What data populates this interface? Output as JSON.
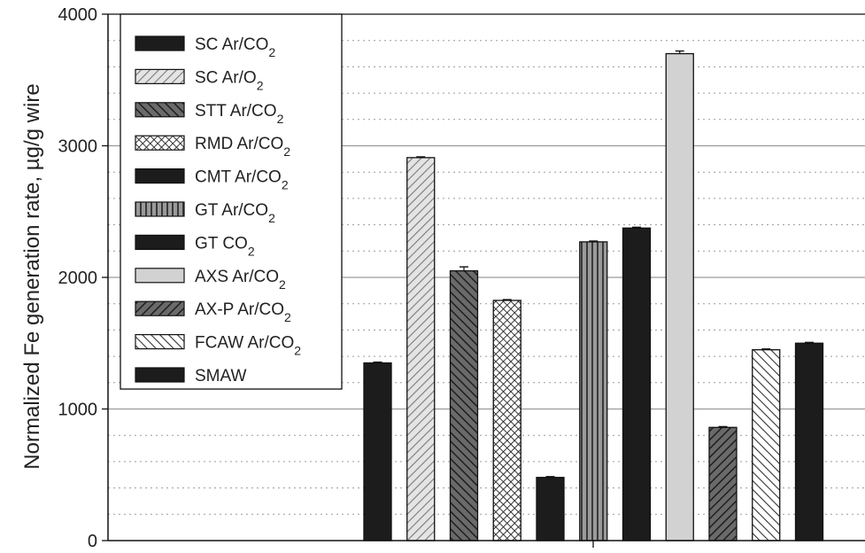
{
  "chart_data": {
    "type": "bar",
    "title": "",
    "xlabel": "",
    "ylabel": "Normalized Fe generation rate, µg/g wire",
    "ylim": [
      0,
      4000
    ],
    "yticks": [
      0,
      1000,
      2000,
      3000,
      4000
    ],
    "grid": {
      "major": 1000,
      "minor": 200
    },
    "legend_position": "top-left",
    "series": [
      {
        "name": "SC Ar/CO",
        "sub": "2",
        "value": 1350,
        "error": 0,
        "pattern": "solid",
        "color": "#1c1c1c"
      },
      {
        "name": "SC Ar/O",
        "sub": "2",
        "value": 2910,
        "error": 0,
        "pattern": "hatch-light",
        "color": "#cfcfcf"
      },
      {
        "name": "STT Ar/CO",
        "sub": "2",
        "value": 2050,
        "error": 30,
        "pattern": "hatch-back-dark",
        "color": "#555555"
      },
      {
        "name": "RMD Ar/CO",
        "sub": "2",
        "value": 1825,
        "error": 0,
        "pattern": "crosshatch",
        "color": "#ffffff"
      },
      {
        "name": "CMT Ar/CO",
        "sub": "2",
        "value": 480,
        "error": 0,
        "pattern": "solid",
        "color": "#1c1c1c"
      },
      {
        "name": "GT Ar/CO",
        "sub": "2",
        "value": 2270,
        "error": 0,
        "pattern": "vertical",
        "color": "#8a8a8a"
      },
      {
        "name": "GT CO",
        "sub": "2",
        "value": 2375,
        "error": 0,
        "pattern": "solid",
        "color": "#1c1c1c"
      },
      {
        "name": "AXS Ar/CO",
        "sub": "2",
        "value": 3700,
        "error": 20,
        "pattern": "solid",
        "color": "#d2d2d2"
      },
      {
        "name": "AX-P Ar/CO",
        "sub": "2",
        "value": 860,
        "error": 0,
        "pattern": "hatch-dark",
        "color": "#555555"
      },
      {
        "name": "FCAW Ar/CO",
        "sub": "2",
        "value": 1450,
        "error": 0,
        "pattern": "hatch-back-light",
        "color": "#ffffff"
      },
      {
        "name": "SMAW",
        "sub": "",
        "value": 1500,
        "error": 0,
        "pattern": "solid",
        "color": "#1c1c1c"
      }
    ]
  }
}
